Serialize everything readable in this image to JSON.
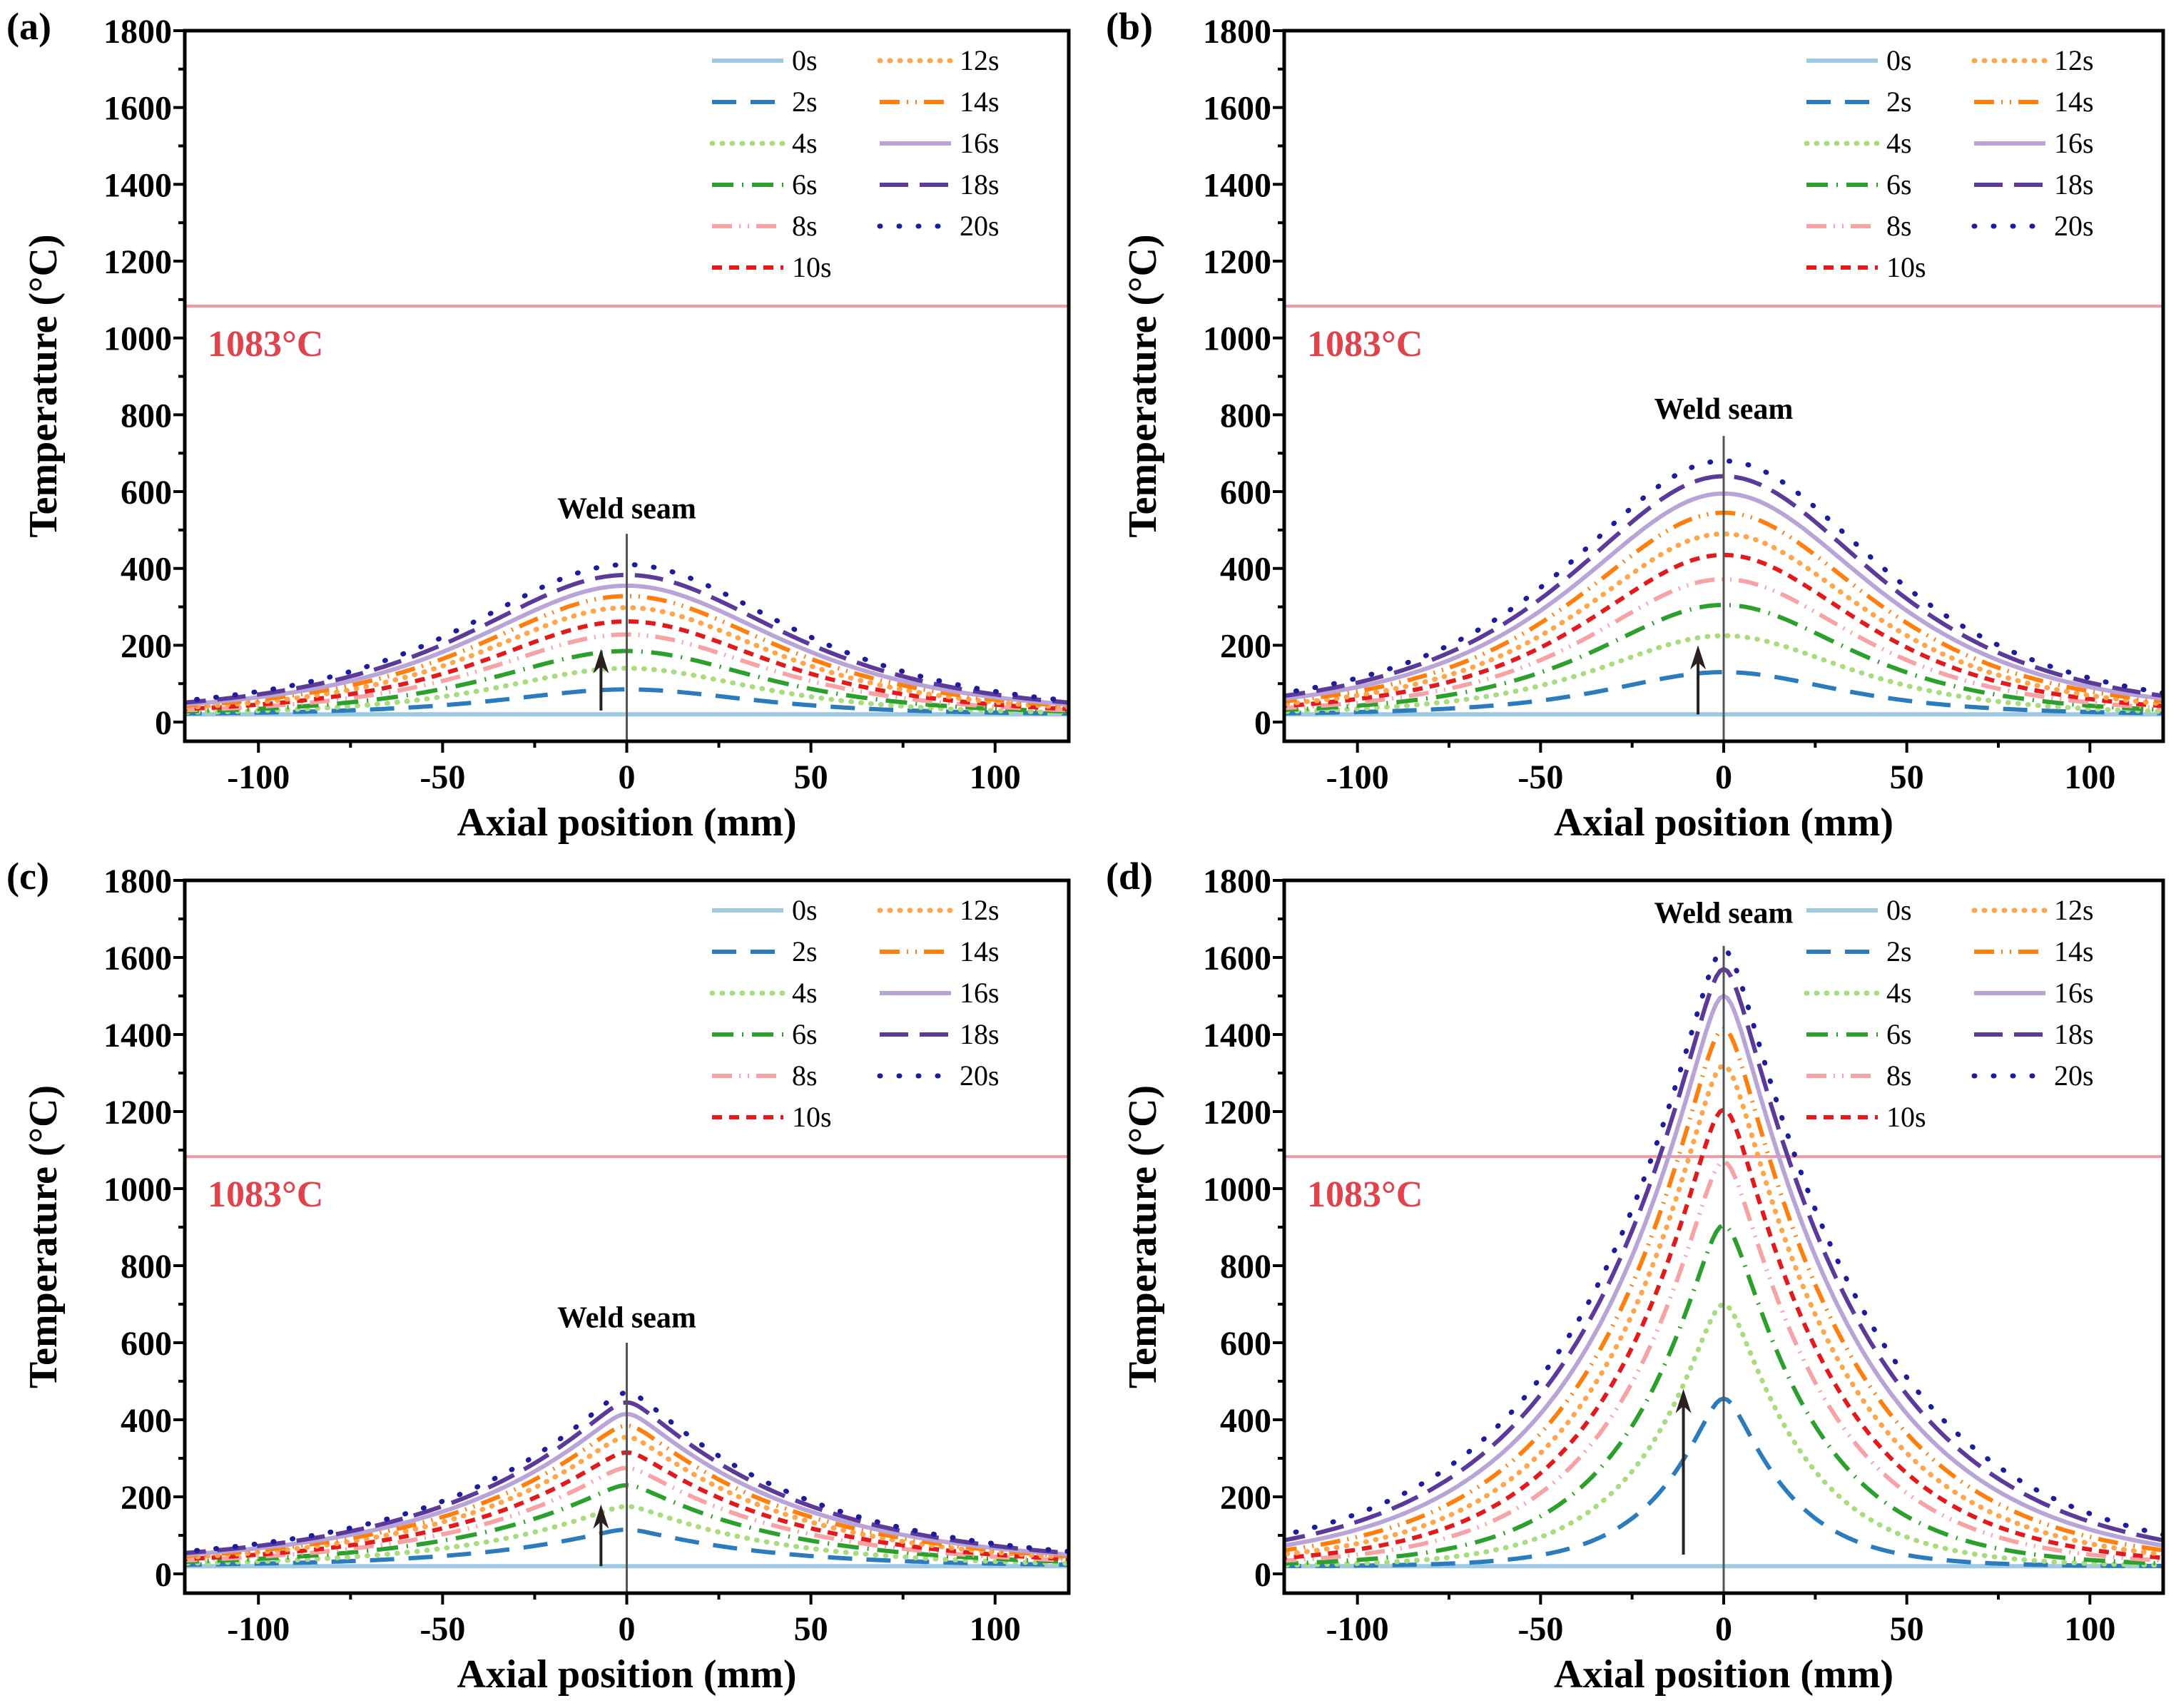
{
  "chart_data": {
    "type": "line",
    "xlabel": "Axial position (mm)",
    "ylabel": "Temperature (°C)",
    "xlim": [
      -120,
      120
    ],
    "ylim": [
      -50,
      1800
    ],
    "xticks": [
      -100,
      -50,
      0,
      50,
      100
    ],
    "yticks": [
      0,
      200,
      400,
      600,
      800,
      1000,
      1200,
      1400,
      1600,
      1800
    ],
    "grid": false,
    "legend_placement": "top-right",
    "reference_line": {
      "value": 1083,
      "label": "1083°C",
      "color": "#f29aa0",
      "label_color": "#e0434c"
    },
    "annotation": "Weld seam",
    "ambient": 20,
    "series_style": [
      {
        "name": "0s",
        "color": "#9ecae1",
        "style": "solid"
      },
      {
        "name": "2s",
        "color": "#2b7bbd",
        "style": "dash"
      },
      {
        "name": "4s",
        "color": "#a9dc7e",
        "style": "dot"
      },
      {
        "name": "6s",
        "color": "#2ca02c",
        "style": "dashdot"
      },
      {
        "name": "8s",
        "color": "#f7a3a6",
        "style": "dashdotdot"
      },
      {
        "name": "10s",
        "color": "#e4191c",
        "style": "shortdash"
      },
      {
        "name": "12s",
        "color": "#ffa64d",
        "style": "dot"
      },
      {
        "name": "14s",
        "color": "#ff7f0e",
        "style": "dashdotdot"
      },
      {
        "name": "16s",
        "color": "#b9a4d8",
        "style": "solid"
      },
      {
        "name": "18s",
        "color": "#5b3a9a",
        "style": "longdash"
      },
      {
        "name": "20s",
        "color": "#1c1c9c",
        "style": "sparsedot"
      }
    ],
    "panels": [
      {
        "label": "(a)",
        "shape": "smooth",
        "weld_top": 490,
        "weld_label_y": 530,
        "arrow": [
          -7,
          30,
          190
        ],
        "peaks": [
          20,
          85,
          140,
          185,
          228,
          262,
          298,
          328,
          355,
          383,
          410
        ],
        "widths": [
          38,
          30,
          31,
          32,
          33,
          34,
          35,
          36,
          37,
          38,
          39
        ]
      },
      {
        "label": "(b)",
        "shape": "smooth",
        "weld_top": 745,
        "weld_label_y": 790,
        "arrow": [
          -7,
          20,
          200
        ],
        "peaks": [
          20,
          130,
          225,
          305,
          372,
          435,
          490,
          545,
          595,
          640,
          680
        ],
        "widths": [
          38,
          28,
          30,
          31,
          32,
          33,
          34,
          35,
          36,
          37,
          38
        ]
      },
      {
        "label": "(c)",
        "shape": "cusp",
        "weld_top": 600,
        "weld_label_y": 640,
        "arrow": [
          -7,
          20,
          180
        ],
        "peaks": [
          20,
          115,
          175,
          230,
          275,
          315,
          355,
          385,
          415,
          445,
          470
        ],
        "widths": [
          45,
          36,
          38,
          40,
          41,
          42,
          43,
          44,
          45,
          46,
          47
        ]
      },
      {
        "label": "(d)",
        "shape": "cusp",
        "weld_top": 1630,
        "weld_label_y": 1690,
        "arrow": [
          -11,
          50,
          480
        ],
        "peaks": [
          20,
          455,
          700,
          905,
          1070,
          1205,
          1320,
          1415,
          1500,
          1570,
          1620
        ],
        "widths": [
          40,
          17,
          21,
          24,
          27,
          29,
          31,
          33,
          35,
          37,
          39
        ]
      }
    ]
  }
}
